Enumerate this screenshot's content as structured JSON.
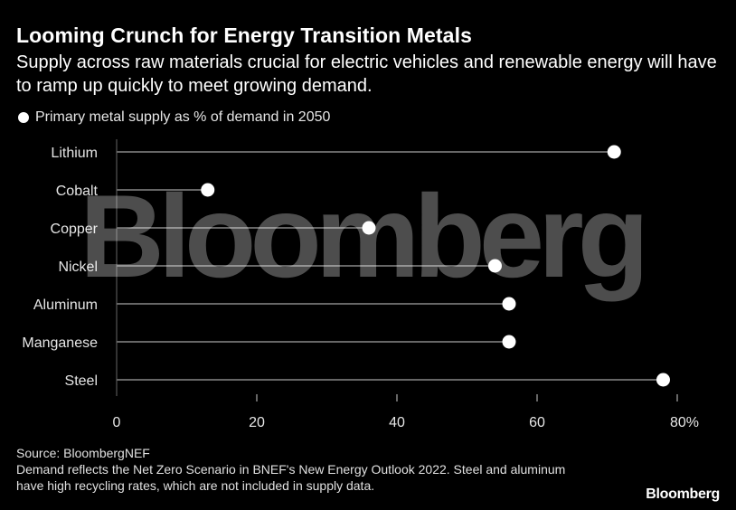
{
  "header": {
    "title": "Looming Crunch for Energy Transition Metals",
    "subtitle": "Supply across raw materials crucial for electric vehicles and renewable energy will have to ramp up quickly to meet growing demand."
  },
  "watermark": "Bloomberg",
  "footer": {
    "source": "Source: BloombergNEF",
    "note": "Demand reflects the Net Zero Scenario in BNEF's New Energy Outlook 2022. Steel and aluminum have high recycling rates, which are not included in supply data.",
    "brand": "Bloomberg"
  },
  "colors": {
    "background": "#000000",
    "stem": "#666666",
    "dot": "#ffffff",
    "text": "#ffffff"
  },
  "chart_data": {
    "type": "scatter",
    "style": "lollipop",
    "title": "",
    "xlabel": "",
    "ylabel": "",
    "categories": [
      "Lithium",
      "Cobalt",
      "Copper",
      "Nickel",
      "Aluminum",
      "Manganese",
      "Steel"
    ],
    "series": [
      {
        "name": "Primary metal supply as % of demand in 2050",
        "values": [
          71,
          13,
          36,
          54,
          56,
          56,
          78
        ]
      }
    ],
    "xlim": [
      0,
      80
    ],
    "xticks": [
      0,
      20,
      40,
      60,
      80
    ],
    "xtick_labels": [
      "0",
      "20",
      "40",
      "60",
      "80%"
    ],
    "grid": false,
    "legend_position": "top-left"
  }
}
